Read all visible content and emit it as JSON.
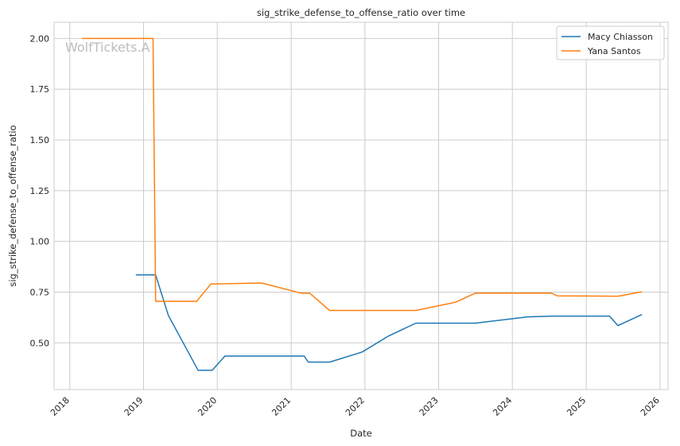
{
  "chart_data": {
    "type": "line",
    "title": "sig_strike_defense_to_offense_ratio over time",
    "xlabel": "Date",
    "ylabel": "sig_strike_defense_to_offense_ratio",
    "watermark": "WolfTickets.A",
    "xlim": [
      "2017-10-15",
      "2026-02-10"
    ],
    "ylim": [
      0.27,
      2.08
    ],
    "x_ticks": [
      "2018",
      "2019",
      "2020",
      "2021",
      "2022",
      "2023",
      "2024",
      "2025",
      "2026"
    ],
    "y_ticks": [
      "0.50",
      "0.75",
      "1.00",
      "1.25",
      "1.50",
      "1.75",
      "2.00"
    ],
    "grid": true,
    "legend_position": "top-right",
    "series": [
      {
        "name": "Macy Chiasson",
        "color": "#1f77b4",
        "points": [
          [
            "2018-11-24",
            0.835
          ],
          [
            "2019-03-02",
            0.835
          ],
          [
            "2019-05-04",
            0.635
          ],
          [
            "2019-09-28",
            0.365
          ],
          [
            "2019-12-07",
            0.365
          ],
          [
            "2020-02-08",
            0.435
          ],
          [
            "2021-03-06",
            0.435
          ],
          [
            "2021-03-27",
            0.405
          ],
          [
            "2021-07-10",
            0.405
          ],
          [
            "2021-12-18",
            0.455
          ],
          [
            "2022-04-30",
            0.535
          ],
          [
            "2022-09-10",
            0.597
          ],
          [
            "2023-07-01",
            0.597
          ],
          [
            "2024-03-16",
            0.628
          ],
          [
            "2024-07-13",
            0.632
          ],
          [
            "2025-04-26",
            0.632
          ],
          [
            "2025-06-07",
            0.585
          ],
          [
            "2025-10-04",
            0.64
          ]
        ]
      },
      {
        "name": "Yana Santos",
        "color": "#ff7f0e",
        "points": [
          [
            "2018-03-03",
            2.0
          ],
          [
            "2019-02-17",
            2.0
          ],
          [
            "2019-03-02",
            0.705
          ],
          [
            "2019-09-21",
            0.705
          ],
          [
            "2019-11-30",
            0.79
          ],
          [
            "2020-08-08",
            0.795
          ],
          [
            "2021-02-20",
            0.745
          ],
          [
            "2021-04-03",
            0.745
          ],
          [
            "2021-07-10",
            0.66
          ],
          [
            "2022-09-10",
            0.66
          ],
          [
            "2023-03-25",
            0.7
          ],
          [
            "2023-07-01",
            0.745
          ],
          [
            "2024-07-13",
            0.745
          ],
          [
            "2024-08-10",
            0.732
          ],
          [
            "2025-06-07",
            0.73
          ],
          [
            "2025-10-04",
            0.752
          ]
        ]
      }
    ]
  }
}
